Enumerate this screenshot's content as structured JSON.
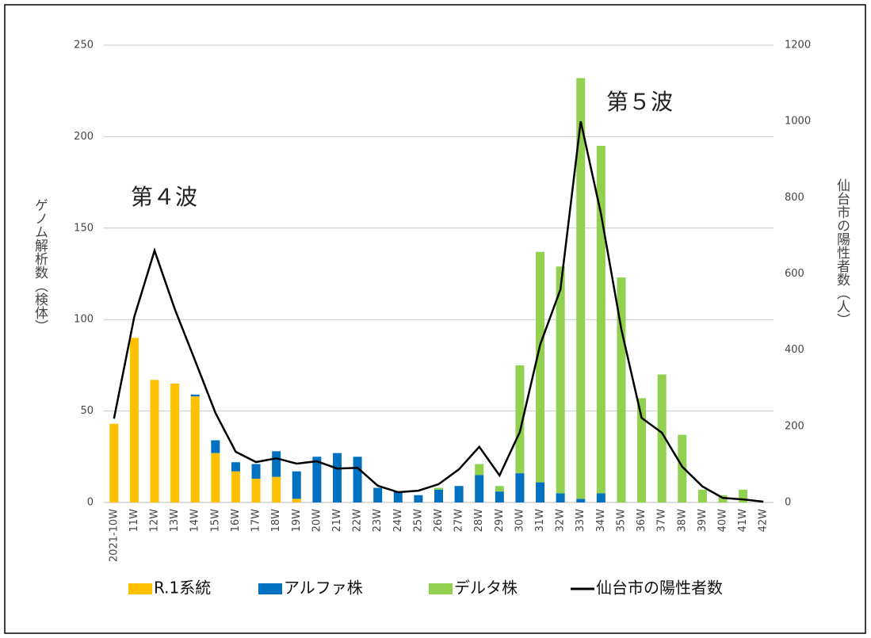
{
  "chart_data": {
    "type": "bar",
    "categories": [
      "2021-10W",
      "11W",
      "12W",
      "13W",
      "14W",
      "15W",
      "16W",
      "17W",
      "18W",
      "19W",
      "20W",
      "21W",
      "22W",
      "23W",
      "24W",
      "25W",
      "26W",
      "27W",
      "28W",
      "29W",
      "30W",
      "31W",
      "32W",
      "33W",
      "34W",
      "35W",
      "36W",
      "37W",
      "38W",
      "39W",
      "40W",
      "41W",
      "42W"
    ],
    "stacked": true,
    "series": [
      {
        "name": "R.1系統",
        "color": "#ffc000",
        "values": [
          43,
          90,
          67,
          65,
          58,
          27,
          17,
          13,
          14,
          2,
          0,
          0,
          0,
          0,
          0,
          0,
          0,
          0,
          0,
          0,
          0,
          0,
          0,
          0,
          0,
          0,
          0,
          0,
          0,
          0,
          0,
          0,
          0
        ]
      },
      {
        "name": "アルファ株",
        "color": "#0070c0",
        "values": [
          0,
          0,
          0,
          0,
          1,
          7,
          5,
          8,
          14,
          15,
          25,
          27,
          25,
          8,
          6,
          4,
          7,
          9,
          15,
          6,
          16,
          11,
          5,
          2,
          5,
          0,
          0,
          0,
          0,
          0,
          0,
          0,
          0
        ]
      },
      {
        "name": "デルタ株",
        "color": "#92d050",
        "values": [
          0,
          0,
          0,
          0,
          0,
          0,
          0,
          0,
          0,
          0,
          0,
          0,
          0,
          0,
          0,
          0,
          1,
          0,
          6,
          3,
          59,
          126,
          124,
          230,
          190,
          123,
          57,
          70,
          37,
          7,
          4,
          7,
          0
        ]
      },
      {
        "name": "仙台市の陽性者数",
        "color": "#000000",
        "type": "line",
        "axis": "y2",
        "values": [
          220,
          487,
          661,
          507,
          372,
          235,
          133,
          106,
          116,
          102,
          108,
          89,
          91,
          44,
          27,
          31,
          48,
          87,
          146,
          71,
          185,
          414,
          559,
          1000,
          757,
          455,
          222,
          183,
          94,
          42,
          12,
          8,
          2
        ]
      }
    ],
    "ylabel": "ゲノム解析数（検体）",
    "y2label": "仙台市の陽性者数（人）",
    "ylim": [
      0,
      250
    ],
    "yticks": [
      0,
      50,
      100,
      150,
      200,
      250
    ],
    "y2lim": [
      0,
      1200
    ],
    "y2ticks": [
      0,
      200,
      400,
      600,
      800,
      1000,
      1200
    ],
    "grid": true,
    "legend": "bottom",
    "annotations": [
      "第４波",
      "第５波"
    ]
  }
}
